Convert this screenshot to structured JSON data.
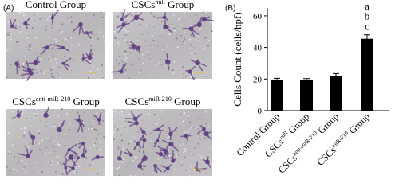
{
  "panel_a": {
    "label": "(A)",
    "captions": [
      {
        "text": "Control Group"
      },
      {
        "text": "CSCs",
        "sup": "null",
        "suffix": "Group"
      },
      {
        "text": "CSCs",
        "sup": "anti-miR-210",
        "suffix": "Group"
      },
      {
        "text": "CSCs",
        "sup": "miR-210",
        "suffix": "Group"
      }
    ]
  },
  "chart_data": {
    "type": "bar",
    "panel_label": "(B)",
    "ylabel": "Cells Count (cells/hpf)",
    "categories": [
      {
        "text": "Control Group"
      },
      {
        "text": "CSCs",
        "sup": "null",
        "suffix": "Group"
      },
      {
        "text": "CSCs",
        "sup": "anti-miR-210",
        "suffix": "Group"
      },
      {
        "text": "CSCs",
        "sup": "miR-210",
        "suffix": "Group"
      }
    ],
    "values": [
      19.5,
      19.3,
      22,
      45.5
    ],
    "errors": [
      1,
      1,
      1.5,
      2.5
    ],
    "color": "#000000",
    "annotation": [
      "a",
      "b",
      "c"
    ],
    "ylim": [
      0,
      65
    ],
    "yticks": [
      0,
      20,
      40,
      60
    ]
  }
}
